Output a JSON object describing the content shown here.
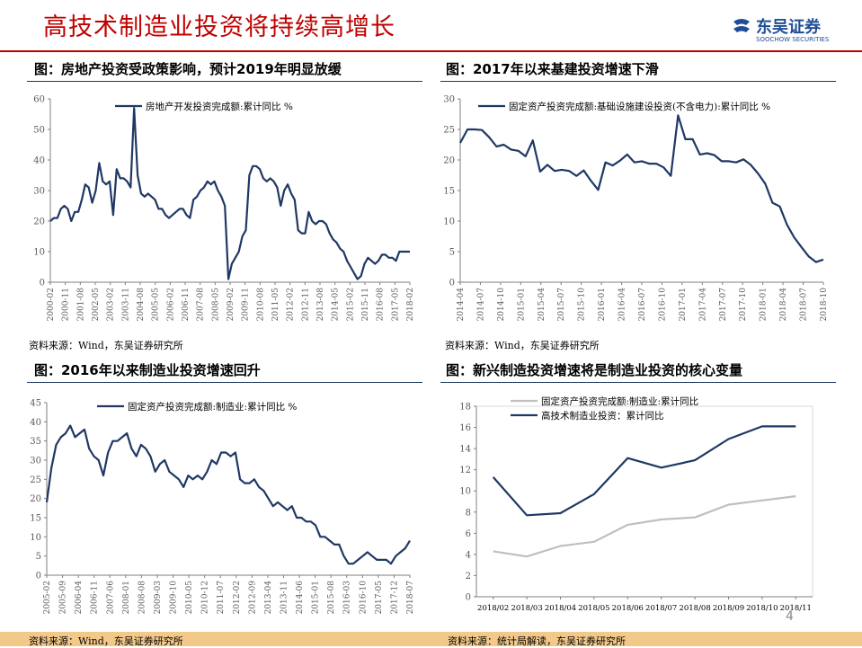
{
  "page": {
    "title": "高技术制造业投资将持续高增长",
    "logo_cn": "东吴证券",
    "logo_en": "SOOCHOW SECURITIES",
    "logo_mark": "SCS",
    "page_number": "4",
    "colors": {
      "accent": "#c00000",
      "navy": "#1f3864",
      "gray": "#bfbfbf",
      "bottom_bar": "#f3c98a"
    }
  },
  "panels": [
    {
      "heading": "图：房地产投资受政策影响，预计2019年明显放缓",
      "source": "资料来源：Wind，东吴证券研究所"
    },
    {
      "heading": "图：2017年以来基建投资增速下滑",
      "source": "资料来源：Wind，东吴证券研究所"
    },
    {
      "heading": "图：2016年以来制造业投资增速回升",
      "source": "资料来源：Wind，东吴证券研究所"
    },
    {
      "heading": "图：新兴制造投资增速将是制造业投资的核心变量",
      "source": "资料来源：统计局解读，东吴证券研究所"
    }
  ],
  "chart_data": [
    {
      "type": "line",
      "ylim": [
        0,
        60
      ],
      "yticks": [
        0,
        10,
        20,
        30,
        40,
        50,
        60
      ],
      "xticks": [
        "2000-02",
        "2000-11",
        "2001-08",
        "2002-05",
        "2003-02",
        "2003-11",
        "2004-08",
        "2005-05",
        "2006-02",
        "2006-11",
        "2007-08",
        "2008-05",
        "2009-02",
        "2009-11",
        "2010-08",
        "2011-05",
        "2012-02",
        "2012-11",
        "2013-08",
        "2014-05",
        "2015-02",
        "2015-11",
        "2016-08",
        "2017-05",
        "2018-02"
      ],
      "series": [
        {
          "name": "房地产开发投资完成额:累计同比 %",
          "color": "#1f3864",
          "values": [
            20,
            21,
            21,
            24,
            25,
            24,
            20,
            23,
            23,
            27,
            32,
            31,
            26,
            30,
            39,
            33,
            32,
            33,
            22,
            37,
            34,
            34,
            33,
            31,
            57,
            35,
            29,
            28,
            29,
            28,
            27,
            24,
            24,
            22,
            21,
            22,
            23,
            24,
            24,
            22,
            21,
            27,
            28,
            30,
            31,
            33,
            32,
            33,
            30,
            28,
            25,
            1,
            6,
            8,
            10,
            15,
            17,
            35,
            38,
            38,
            37,
            34,
            33,
            34,
            33,
            31,
            25,
            30,
            32,
            29,
            27,
            17,
            16,
            16,
            23,
            20,
            19,
            20,
            20,
            19,
            16,
            14,
            13,
            11,
            10,
            7,
            5,
            3,
            1,
            2,
            6,
            8,
            7,
            6,
            7,
            9,
            9,
            8,
            8,
            7,
            10,
            10,
            10,
            10
          ]
        }
      ]
    },
    {
      "type": "line",
      "ylim": [
        0,
        30
      ],
      "yticks": [
        0,
        5,
        10,
        15,
        20,
        25,
        30
      ],
      "xticks": [
        "2014-04",
        "2014-07",
        "2014-10",
        "2015-01",
        "2015-04",
        "2015-07",
        "2015-10",
        "2016-01",
        "2016-04",
        "2016-07",
        "2016-10",
        "2017-01",
        "2017-04",
        "2017-07",
        "2017-10",
        "2018-01",
        "2018-04",
        "2018-07",
        "2018-10"
      ],
      "series": [
        {
          "name": "固定资产投资完成额:基础设施建设投资(不含电力):累计同比 %",
          "color": "#1f3864",
          "values": [
            22.8,
            25,
            25,
            24.9,
            23.7,
            22.2,
            22.5,
            21.7,
            21.5,
            20.6,
            23.2,
            18.1,
            19.2,
            18.2,
            18.4,
            18.2,
            17.4,
            18.3,
            16.6,
            15.1,
            19.6,
            19.1,
            19.9,
            20.9,
            19.6,
            19.8,
            19.4,
            19.4,
            18.8,
            17.4,
            27.3,
            23.4,
            23.4,
            20.9,
            21.1,
            20.8,
            19.8,
            19.8,
            19.6,
            20.1,
            19.2,
            17.8,
            16.1,
            13.0,
            12.4,
            9.4,
            7.3,
            5.7,
            4.2,
            3.3,
            3.7
          ]
        }
      ]
    },
    {
      "type": "line",
      "ylim": [
        0,
        45
      ],
      "yticks": [
        0,
        5,
        10,
        15,
        20,
        25,
        30,
        35,
        40,
        45
      ],
      "xticks": [
        "2005-02",
        "2005-09",
        "2006-04",
        "2006-11",
        "2007-06",
        "2008-01",
        "2008-08",
        "2009-03",
        "2009-10",
        "2010-05",
        "2010-12",
        "2011-07",
        "2012-02",
        "2012-09",
        "2013-04",
        "2013-11",
        "2014-06",
        "2015-01",
        "2015-08",
        "2016-03",
        "2016-10",
        "2017-05",
        "2017-12",
        "2018-07"
      ],
      "series": [
        {
          "name": "固定资产投资完成额:制造业:累计同比 %",
          "color": "#1f3864",
          "values": [
            19,
            28,
            34,
            36,
            37,
            39,
            36,
            37,
            38,
            33,
            31,
            30,
            26,
            32,
            35,
            35,
            36,
            37,
            33,
            31,
            34,
            33,
            31,
            27,
            29,
            30,
            27,
            26,
            25,
            23,
            26,
            25,
            26,
            25,
            27,
            30,
            29,
            32,
            32,
            31,
            32,
            25,
            24,
            24,
            25,
            23,
            22,
            20,
            18,
            19,
            18,
            17,
            18,
            15,
            15,
            14,
            14,
            13,
            10,
            10,
            9,
            8,
            8,
            5,
            3,
            3,
            4,
            5,
            6,
            5,
            4,
            4,
            4,
            3,
            5,
            6,
            7,
            9
          ]
        }
      ]
    },
    {
      "type": "line",
      "ylim": [
        0,
        18
      ],
      "yticks": [
        0,
        2,
        4,
        6,
        8,
        10,
        12,
        14,
        16,
        18
      ],
      "categories": [
        "2018/02",
        "2018/03",
        "2018/04",
        "2018/05",
        "2018/06",
        "2018/07",
        "2018/08",
        "2018/09",
        "2018/10",
        "2018/11"
      ],
      "legend": "top",
      "series": [
        {
          "name": "固定资产投资完成额:制造业:累计同比",
          "color": "#bfbfbf",
          "values": [
            4.3,
            3.8,
            4.8,
            5.2,
            6.8,
            7.3,
            7.5,
            8.7,
            9.1,
            9.5
          ]
        },
        {
          "name": "高技术制造业投资：累计同比",
          "color": "#1f3864",
          "values": [
            11.3,
            7.7,
            7.9,
            9.7,
            13.1,
            12.2,
            12.9,
            14.9,
            16.1,
            16.1
          ]
        }
      ]
    }
  ]
}
